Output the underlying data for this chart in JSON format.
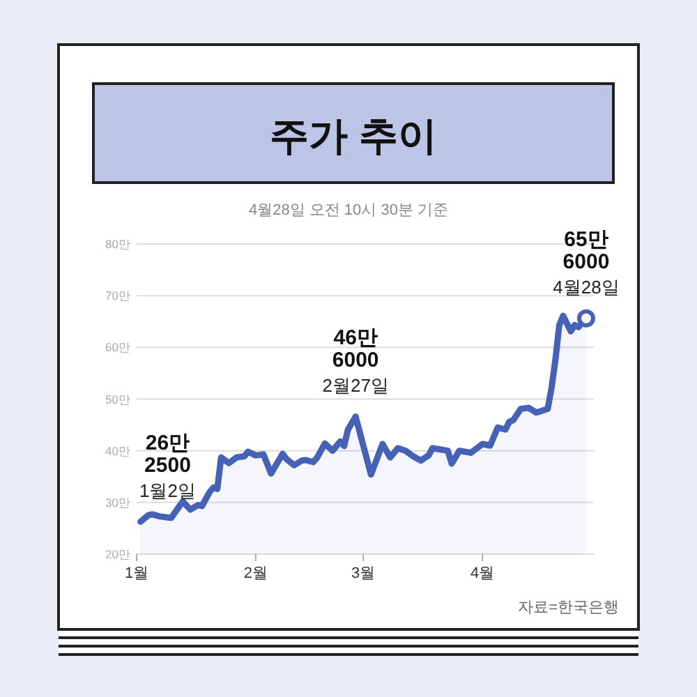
{
  "chart_data": {
    "type": "area",
    "title": "주가 추이",
    "subtitle": "4월28일 오전 10시 30분 기준",
    "annotations": [
      {
        "text": "26만\n2500\n1월2일",
        "x": "--01-02",
        "y": 26.25
      },
      {
        "text": "46만\n6000\n2월27일",
        "x": "--02-27",
        "y": 46.6
      },
      {
        "text": "65만\n6000\n4월28일",
        "x": "--04-28",
        "y": 65.6
      },
      "자료=한국은행"
    ],
    "series": [
      {
        "color": "#4562b8",
        "x": [
          "--01-02",
          "--01-04",
          "--01-05",
          "--01-07",
          "--01-10",
          "--01-13",
          "--01-15",
          "--01-17",
          "--01-18",
          "--01-20",
          "--01-21",
          "--01-22",
          "--01-23",
          "--01-25",
          "--01-27",
          "--01-29",
          "--01-30",
          "--02-01",
          "--02-03",
          "--02-05",
          "--02-08",
          "--02-09",
          "--02-11",
          "--02-13",
          "--02-14",
          "--02-16",
          "--02-17",
          "--02-19",
          "--02-21",
          "--02-23",
          "--02-24",
          "--02-25",
          "--02-27",
          "--03-03",
          "--03-06",
          "--03-08",
          "--03-10",
          "--03-12",
          "--03-14",
          "--03-16",
          "--03-18",
          "--03-19",
          "--03-23",
          "--03-24",
          "--03-26",
          "--03-29",
          "--04-01",
          "--04-03",
          "--04-05",
          "--04-07",
          "--04-08",
          "--04-09",
          "--04-11",
          "--04-13",
          "--04-15",
          "--04-16",
          "--04-18",
          "--04-19",
          "--04-20",
          "--04-21",
          "--04-22",
          "--04-24",
          "--04-25",
          "--04-26",
          "--04-28"
        ],
        "values": [
          26.25,
          27.5,
          27.7,
          27.3,
          27.0,
          30.2,
          28.6,
          29.5,
          29.3,
          32.0,
          32.9,
          32.6,
          38.7,
          37.6,
          38.7,
          38.9,
          39.8,
          39.1,
          39.3,
          35.6,
          39.4,
          38.4,
          37.2,
          38.1,
          38.2,
          37.8,
          38.7,
          41.4,
          40.0,
          41.8,
          40.9,
          44.1,
          46.6,
          35.4,
          41.3,
          38.7,
          40.5,
          40.0,
          38.9,
          38.1,
          39.1,
          40.5,
          40.0,
          37.5,
          40.0,
          39.6,
          41.3,
          41.0,
          44.5,
          44.1,
          45.6,
          45.9,
          48.1,
          48.3,
          47.4,
          47.6,
          48.1,
          52.2,
          57.6,
          64.3,
          66.1,
          63.1,
          64.3,
          63.9,
          65.6
        ]
      },
      {
        "type": "scatter",
        "color": "#4562b8",
        "marker": "circle",
        "x": [
          "--04-28"
        ],
        "values": [
          65.6
        ]
      }
    ],
    "xlim": [
      "--01-01",
      "--04-30"
    ],
    "xticks": [
      {
        "value": "--01-01",
        "label": "1월"
      },
      {
        "value": "--02-01",
        "label": "2월"
      },
      {
        "value": "--03-01",
        "label": "3월"
      },
      {
        "value": "--04-01",
        "label": "4월"
      }
    ],
    "ylim": [
      20,
      80
    ],
    "yticks": [
      {
        "value": 20,
        "label": "20만"
      },
      {
        "value": 30,
        "label": "30만"
      },
      {
        "value": 40,
        "label": "40만"
      },
      {
        "value": 50,
        "label": "50만"
      },
      {
        "value": 60,
        "label": "60만"
      },
      {
        "value": 70,
        "label": "70만"
      },
      {
        "value": 80,
        "label": "80만"
      }
    ],
    "grid": "y"
  }
}
